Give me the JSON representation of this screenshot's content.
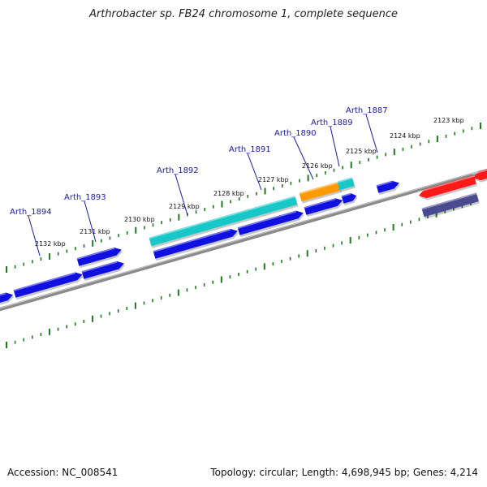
{
  "title": "Arthrobacter sp. FB24 chromosome 1, complete sequence",
  "footer": {
    "accession": "Accession: NC_008541",
    "summary": "Topology: circular; Length: 4,698,945 bp; Genes: 4,214"
  },
  "colors": {
    "backbone": "#8a8a8a",
    "tick": "#1f7a1f",
    "cds_forward": "#1010e0",
    "cds_reverse_light": "#ff1a1a",
    "cds_reverse_dark": "#4a4a90",
    "rna_cyan": "#18c8c8",
    "rna_orange": "#ff9a00",
    "gene_label": "#1a1aa8"
  },
  "scale_labels": [
    "2132 kbp",
    "2131 kbp",
    "2130 kbp",
    "2129 kbp",
    "2128 kbp",
    "2127 kbp",
    "2126 kbp",
    "2125 kbp",
    "2124 kbp",
    "2123 kbp"
  ],
  "gene_labels": [
    "Arth_1894",
    "Arth_1893",
    "Arth_1892",
    "Arth_1891",
    "Arth_1890",
    "Arth_1889",
    "Arth_1887"
  ]
}
